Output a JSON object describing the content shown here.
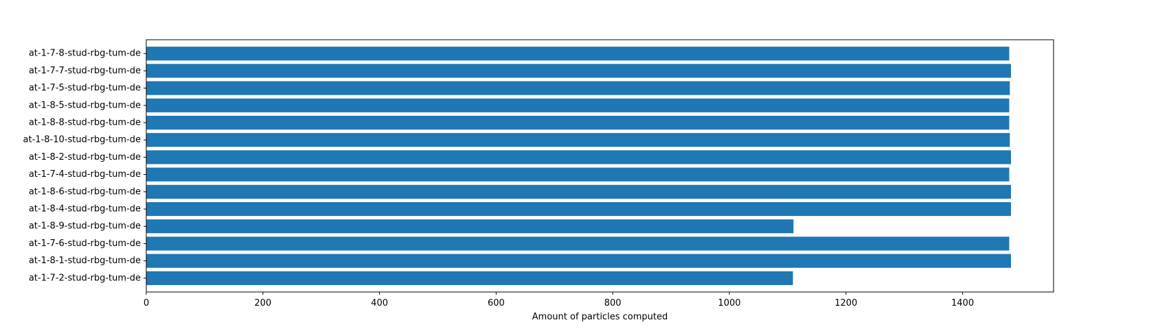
{
  "chart_data": {
    "type": "bar",
    "orientation": "horizontal",
    "title": "",
    "xlabel": "Amount of particles computed",
    "ylabel": "",
    "xlim": [
      0,
      1556
    ],
    "xticks": [
      0,
      200,
      400,
      600,
      800,
      1000,
      1200,
      1400
    ],
    "grid": false,
    "bar_color": "#1f77b4",
    "categories": [
      "at-1-7-8-stud-rbg-tum-de",
      "at-1-7-7-stud-rbg-tum-de",
      "at-1-7-5-stud-rbg-tum-de",
      "at-1-8-5-stud-rbg-tum-de",
      "at-1-8-8-stud-rbg-tum-de",
      "at-1-8-10-stud-rbg-tum-de",
      "at-1-8-2-stud-rbg-tum-de",
      "at-1-7-4-stud-rbg-tum-de",
      "at-1-8-6-stud-rbg-tum-de",
      "at-1-8-4-stud-rbg-tum-de",
      "at-1-8-9-stud-rbg-tum-de",
      "at-1-7-6-stud-rbg-tum-de",
      "at-1-8-1-stud-rbg-tum-de",
      "at-1-7-2-stud-rbg-tum-de"
    ],
    "values": [
      1480,
      1483,
      1481,
      1480,
      1480,
      1481,
      1483,
      1480,
      1483,
      1483,
      1110,
      1480,
      1483,
      1109
    ]
  }
}
